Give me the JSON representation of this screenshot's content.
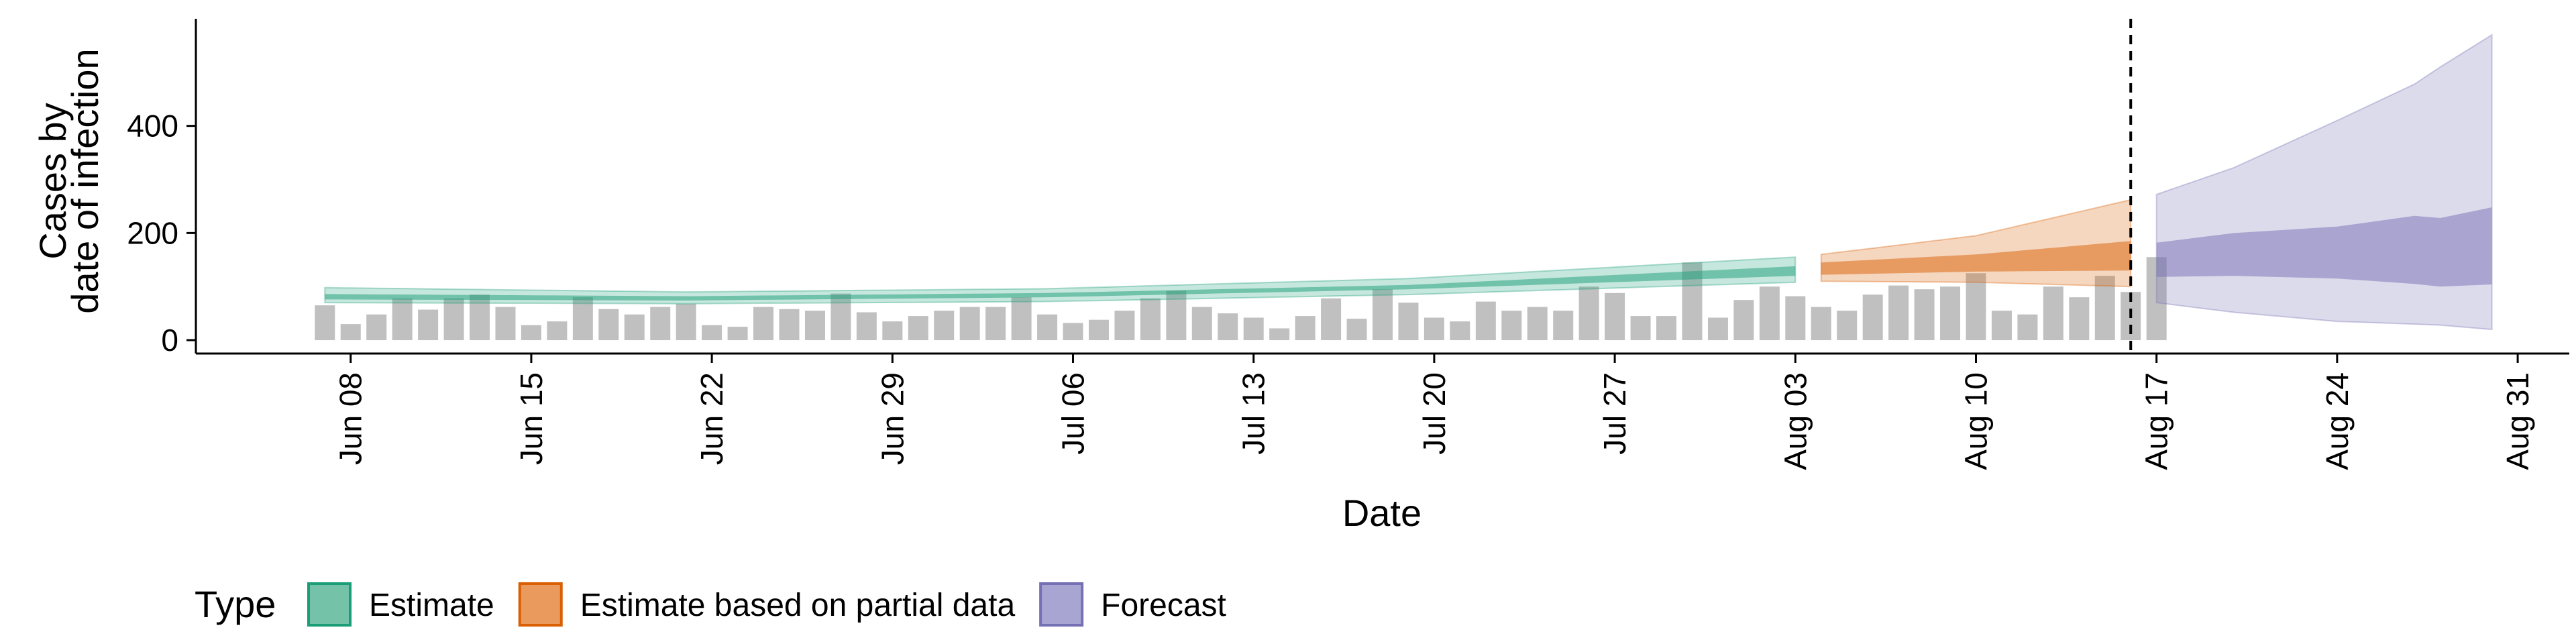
{
  "chart_data": {
    "type": "area",
    "xlabel": "Date",
    "ylabel_lines": [
      "Cases by",
      "date of infection"
    ],
    "x_range": [
      "2020-06-02",
      "2020-09-02"
    ],
    "ylim": [
      -25,
      600
    ],
    "y_ticks": [
      0,
      200,
      400
    ],
    "x_ticks": [
      {
        "date": "2020-06-08",
        "label": "Jun 08"
      },
      {
        "date": "2020-06-15",
        "label": "Jun 15"
      },
      {
        "date": "2020-06-22",
        "label": "Jun 22"
      },
      {
        "date": "2020-06-29",
        "label": "Jun 29"
      },
      {
        "date": "2020-07-06",
        "label": "Jul 06"
      },
      {
        "date": "2020-07-13",
        "label": "Jul 13"
      },
      {
        "date": "2020-07-20",
        "label": "Jul 20"
      },
      {
        "date": "2020-07-27",
        "label": "Jul 27"
      },
      {
        "date": "2020-08-03",
        "label": "Aug 03"
      },
      {
        "date": "2020-08-10",
        "label": "Aug 10"
      },
      {
        "date": "2020-08-17",
        "label": "Aug 17"
      },
      {
        "date": "2020-08-24",
        "label": "Aug 24"
      },
      {
        "date": "2020-08-31",
        "label": "Aug 31"
      }
    ],
    "vline_date": "2020-08-16",
    "grid": false,
    "legend": {
      "title": "Type",
      "position": "bottom-left",
      "entries": [
        {
          "label": "Estimate",
          "fill": "#74c3a8",
          "stroke": "#1b9e77"
        },
        {
          "label": "Estimate based on partial data",
          "fill": "#eb9a5e",
          "stroke": "#d95f02"
        },
        {
          "label": "Forecast",
          "fill": "#a9a5d3",
          "stroke": "#7570b3"
        }
      ]
    },
    "reported_cases": {
      "start_date": "2020-06-07",
      "color": "#bdbdbd",
      "values": [
        65,
        30,
        48,
        78,
        57,
        78,
        85,
        62,
        28,
        35,
        80,
        58,
        48,
        62,
        68,
        28,
        25,
        62,
        58,
        55,
        87,
        52,
        35,
        45,
        55,
        62,
        62,
        80,
        48,
        32,
        38,
        55,
        78,
        92,
        62,
        50,
        42,
        22,
        45,
        78,
        40,
        95,
        70,
        42,
        35,
        72,
        55,
        62,
        55,
        100,
        88,
        45,
        45,
        145,
        42,
        75,
        100,
        82,
        62,
        55,
        85,
        102,
        95,
        100,
        125,
        55,
        48,
        100,
        80,
        120,
        90,
        155
      ]
    },
    "series": [
      {
        "name": "Estimate",
        "date_range": [
          "2020-06-07",
          "2020-08-03"
        ],
        "color_outer": "#1b9e77",
        "color_inner": "#1b9e77",
        "knots": [
          {
            "date": "2020-06-07",
            "lower90": 70,
            "lower50": 76,
            "upper50": 86,
            "upper90": 98
          },
          {
            "date": "2020-06-21",
            "lower90": 68,
            "lower50": 74,
            "upper50": 82,
            "upper90": 90
          },
          {
            "date": "2020-07-05",
            "lower90": 72,
            "lower50": 80,
            "upper50": 88,
            "upper90": 96
          },
          {
            "date": "2020-07-19",
            "lower90": 85,
            "lower50": 95,
            "upper50": 103,
            "upper90": 115
          },
          {
            "date": "2020-08-03",
            "lower90": 108,
            "lower50": 120,
            "upper50": 138,
            "upper90": 155
          }
        ]
      },
      {
        "name": "Estimate based on partial data",
        "date_range": [
          "2020-08-04",
          "2020-08-16"
        ],
        "color_outer": "#d95f02",
        "color_inner": "#d95f02",
        "knots": [
          {
            "date": "2020-08-04",
            "lower90": 110,
            "lower50": 122,
            "upper50": 145,
            "upper90": 160
          },
          {
            "date": "2020-08-10",
            "lower90": 108,
            "lower50": 128,
            "upper50": 160,
            "upper90": 195
          },
          {
            "date": "2020-08-16",
            "lower90": 100,
            "lower50": 130,
            "upper50": 185,
            "upper90": 262
          }
        ]
      },
      {
        "name": "Forecast",
        "date_range": [
          "2020-08-17",
          "2020-08-30"
        ],
        "color_outer": "#7570b3",
        "color_inner": "#7570b3",
        "knots": [
          {
            "date": "2020-08-17",
            "lower90": 70,
            "lower50": 118,
            "upper50": 182,
            "upper90": 272
          },
          {
            "date": "2020-08-20",
            "lower90": 52,
            "lower50": 120,
            "upper50": 200,
            "upper90": 322
          },
          {
            "date": "2020-08-24",
            "lower90": 35,
            "lower50": 115,
            "upper50": 212,
            "upper90": 410
          },
          {
            "date": "2020-08-27",
            "lower90": 30,
            "lower50": 105,
            "upper50": 232,
            "upper90": 478
          },
          {
            "date": "2020-08-28",
            "lower90": 28,
            "lower50": 100,
            "upper50": 228,
            "upper90": 510
          },
          {
            "date": "2020-08-30",
            "lower90": 20,
            "lower50": 104,
            "upper50": 248,
            "upper90": 570
          }
        ]
      }
    ]
  }
}
